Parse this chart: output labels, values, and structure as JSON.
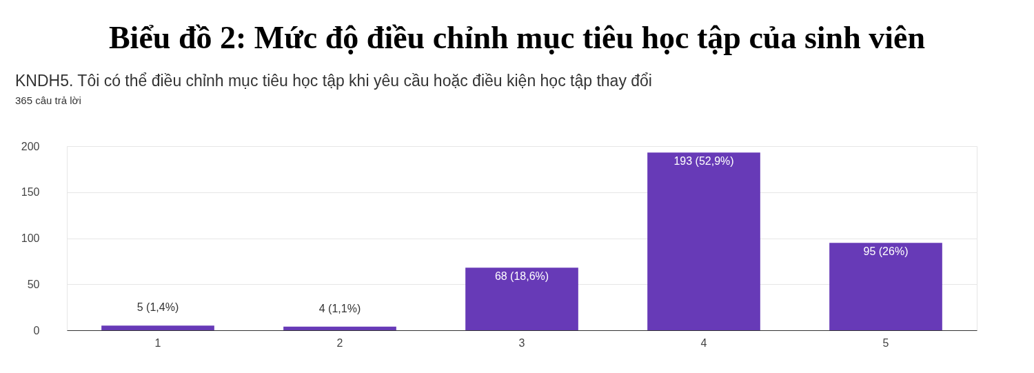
{
  "chart_data": {
    "type": "bar",
    "title": "Biểu đồ 2: Mức độ điều chỉnh mục tiêu học tập của sinh viên",
    "subtitle": "KNDH5. Tôi có thể điều chỉnh mục tiêu học tập khi yêu cầu hoặc điều kiện học tập thay đổi",
    "annotations": [
      "365 câu trả lời"
    ],
    "categories": [
      "1",
      "2",
      "3",
      "4",
      "5"
    ],
    "values": [
      5,
      4,
      68,
      193,
      95
    ],
    "value_labels": [
      "5 (1,4%)",
      "4 (1,1%)",
      "68 (18,6%)",
      "193 (52,9%)",
      "95 (26%)"
    ],
    "color": "#673ab7",
    "ylim": [
      0,
      200
    ],
    "yticks": [
      0,
      50,
      100,
      150,
      200
    ],
    "grid": "y"
  }
}
